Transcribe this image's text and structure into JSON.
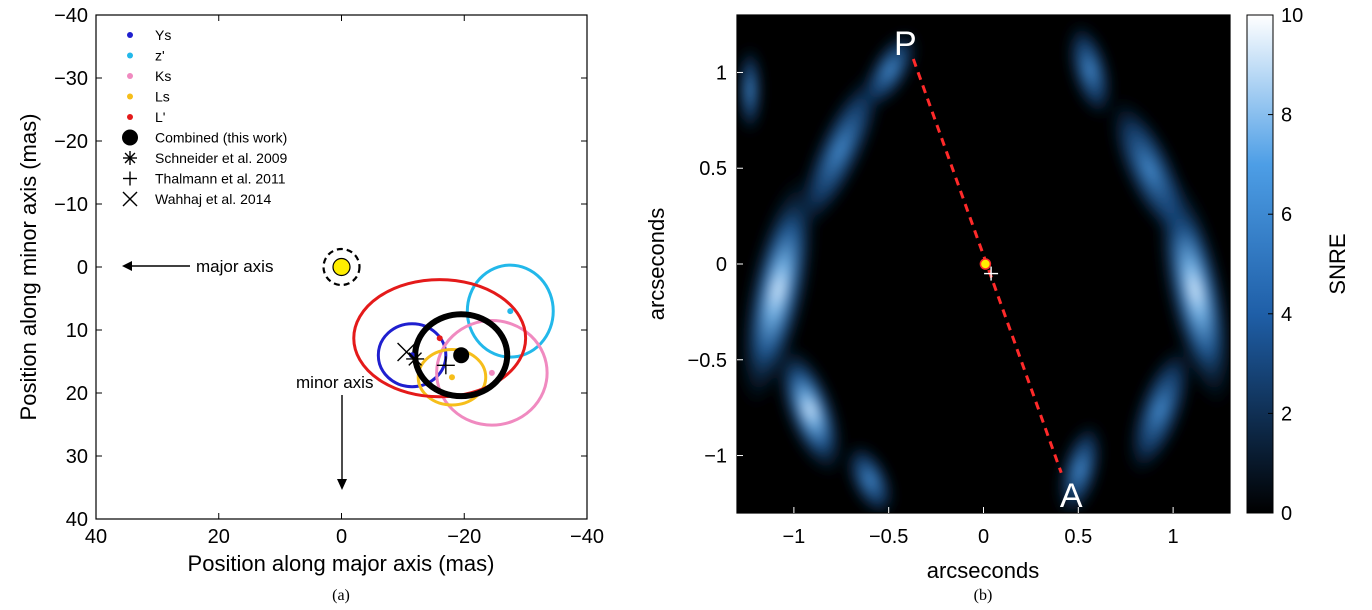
{
  "chart_data": [
    {
      "type": "scatter",
      "panel": "(a)",
      "xlabel": "Position along major axis (mas)",
      "ylabel": "Position along minor axis (mas)",
      "xlim": [
        40,
        -40
      ],
      "ylim": [
        -40,
        40
      ],
      "xticks": [
        40,
        20,
        0,
        -20,
        -40
      ],
      "yticks": [
        -40,
        -30,
        -20,
        -10,
        0,
        10,
        20,
        30,
        40
      ],
      "legend_position": "top-left",
      "legend": [
        {
          "label": "Ys",
          "marker": "dot",
          "color": "#1f1fcf"
        },
        {
          "label": "z'",
          "marker": "dot",
          "color": "#22b8ea"
        },
        {
          "label": "Ks",
          "marker": "dot",
          "color": "#f08ac0"
        },
        {
          "label": "Ls",
          "marker": "dot",
          "color": "#f6be1a"
        },
        {
          "label": "L'",
          "marker": "dot",
          "color": "#e41a1a"
        },
        {
          "label": "Combined (this work)",
          "marker": "bigdot",
          "color": "#000000"
        },
        {
          "label": "Schneider et al. 2009",
          "marker": "asterisk",
          "color": "#000000"
        },
        {
          "label": "Thalmann et al. 2011",
          "marker": "plus",
          "color": "#000000"
        },
        {
          "label": "Wahhaj et al. 2014",
          "marker": "cross",
          "color": "#000000"
        }
      ],
      "star": {
        "x": 0,
        "y": 0,
        "color": "#ffee00"
      },
      "measurements": [
        {
          "name": "Ys",
          "x": -11.5,
          "y": 14,
          "rx": 5.5,
          "ry": 5,
          "color": "#1f1fcf"
        },
        {
          "name": "z'",
          "x": -27.5,
          "y": 7,
          "rx": 7,
          "ry": 7.3,
          "color": "#22b8ea"
        },
        {
          "name": "Ks",
          "x": -24.5,
          "y": 16.8,
          "rx": 9,
          "ry": 8.3,
          "color": "#f08ac0"
        },
        {
          "name": "Ls",
          "x": -18,
          "y": 17.5,
          "rx": 5.5,
          "ry": 4.4,
          "color": "#f6be1a"
        },
        {
          "name": "L'",
          "x": -16,
          "y": 11.3,
          "rx": 14,
          "ry": 9.3,
          "color": "#e41a1a"
        },
        {
          "name": "Combined (this work)",
          "x": -19.5,
          "y": 14,
          "rx": 7.5,
          "ry": 6.5,
          "color": "#000000"
        }
      ],
      "literature_points": [
        {
          "name": "Schneider et al. 2009",
          "x": -12,
          "y": 14.6,
          "marker": "asterisk"
        },
        {
          "name": "Thalmann et al. 2011",
          "x": -17,
          "y": 15.6,
          "marker": "plus"
        },
        {
          "name": "Wahhaj et al. 2014",
          "x": -10.6,
          "y": 13.5,
          "marker": "cross"
        }
      ],
      "annotations": {
        "major_axis": "major axis",
        "minor_axis": "minor axis"
      },
      "caption": "(a)"
    },
    {
      "type": "heatmap",
      "panel": "(b)",
      "xlabel": "arcseconds",
      "ylabel": "arcseconds",
      "xlim": [
        -1.3,
        1.3
      ],
      "ylim": [
        -1.3,
        1.3
      ],
      "xticks": [
        -1,
        -0.5,
        0,
        0.5,
        1
      ],
      "yticks": [
        1,
        0.5,
        0,
        -0.5,
        -1
      ],
      "colorbar": {
        "label": "SNRE",
        "min": 0,
        "max": 10,
        "ticks": [
          0,
          2,
          4,
          6,
          8,
          10
        ]
      },
      "axis_line": {
        "from": {
          "x": -0.37,
          "y": 1.07
        },
        "to": {
          "x": 0.41,
          "y": -1.09
        },
        "color": "#ff2222"
      },
      "endpoint_labels": {
        "start": "P",
        "end": "A"
      },
      "center_markers": {
        "star": {
          "x": 0.01,
          "y": 0.0
        },
        "companion": {
          "x": 0.04,
          "y": -0.05
        }
      },
      "caption": "(b)"
    }
  ]
}
